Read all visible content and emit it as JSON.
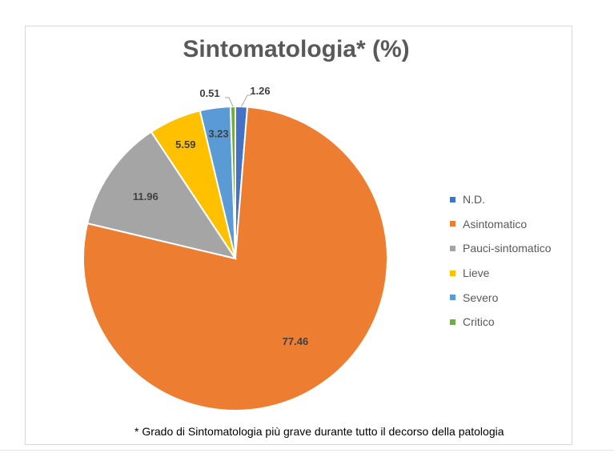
{
  "chart_data": {
    "type": "pie",
    "title": "Sintomatologia* (%)",
    "categories": [
      "N.D.",
      "Asintomatico",
      "Pauci-sintomatico",
      "Lieve",
      "Severo",
      "Critico"
    ],
    "values": [
      1.26,
      77.46,
      11.96,
      5.59,
      3.23,
      0.51
    ],
    "data_labels": [
      "1.26",
      "77.46",
      "11.96",
      "5.59",
      "3.23",
      "0.51"
    ],
    "colors": [
      "#4472C4",
      "#ED7D31",
      "#A5A5A5",
      "#FFC000",
      "#5B9BD5",
      "#70AD47"
    ],
    "legend_position": "right",
    "footnote": "* Grado di Sintomatologia più grave durante tutto il decorso della patologia"
  }
}
